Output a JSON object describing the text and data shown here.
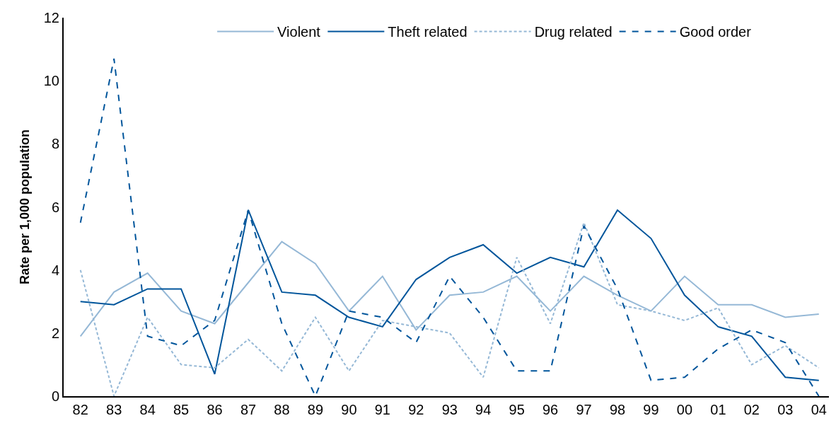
{
  "chart_data": {
    "type": "line",
    "ylabel": "Rate per 1,000 population",
    "categories": [
      "82",
      "83",
      "84",
      "85",
      "86",
      "87",
      "88",
      "89",
      "90",
      "91",
      "92",
      "93",
      "94",
      "95",
      "96",
      "97",
      "98",
      "99",
      "00",
      "01",
      "02",
      "03",
      "04"
    ],
    "series": [
      {
        "name": "Violent",
        "color": "#95b8d6",
        "line_style": "solid",
        "values": [
          1.9,
          3.3,
          3.9,
          2.7,
          2.3,
          3.6,
          4.9,
          4.2,
          2.7,
          3.8,
          2.1,
          3.2,
          3.3,
          3.8,
          2.7,
          3.8,
          3.2,
          2.7,
          3.8,
          2.9,
          2.9,
          2.5,
          2.6
        ]
      },
      {
        "name": "Theft related",
        "color": "#00559b",
        "line_style": "solid",
        "values": [
          3.0,
          2.9,
          3.4,
          3.4,
          0.7,
          5.9,
          3.3,
          3.2,
          2.5,
          2.2,
          3.7,
          4.4,
          4.8,
          3.9,
          4.4,
          4.1,
          5.9,
          5.0,
          3.2,
          2.2,
          1.9,
          0.6,
          0.5
        ]
      },
      {
        "name": "Drug related",
        "color": "#95b8d6",
        "line_style": "dotted",
        "values": [
          4.0,
          0.0,
          2.5,
          1.0,
          0.9,
          1.8,
          0.8,
          2.5,
          0.8,
          2.4,
          2.2,
          2.0,
          0.6,
          4.4,
          2.3,
          5.5,
          2.9,
          2.7,
          2.4,
          2.8,
          1.0,
          1.6,
          0.9
        ]
      },
      {
        "name": "Good order",
        "color": "#00559b",
        "line_style": "dashed",
        "values": [
          5.5,
          10.7,
          1.9,
          1.6,
          2.4,
          5.9,
          2.3,
          0.0,
          2.7,
          2.5,
          1.7,
          3.8,
          2.5,
          0.8,
          0.8,
          5.4,
          3.4,
          0.5,
          0.6,
          1.5,
          2.1,
          1.7,
          0.0
        ]
      }
    ],
    "ylim": [
      0,
      12
    ],
    "yticks": [
      0,
      2,
      4,
      6,
      8,
      10,
      12
    ],
    "legend": "top",
    "marker": "none"
  }
}
